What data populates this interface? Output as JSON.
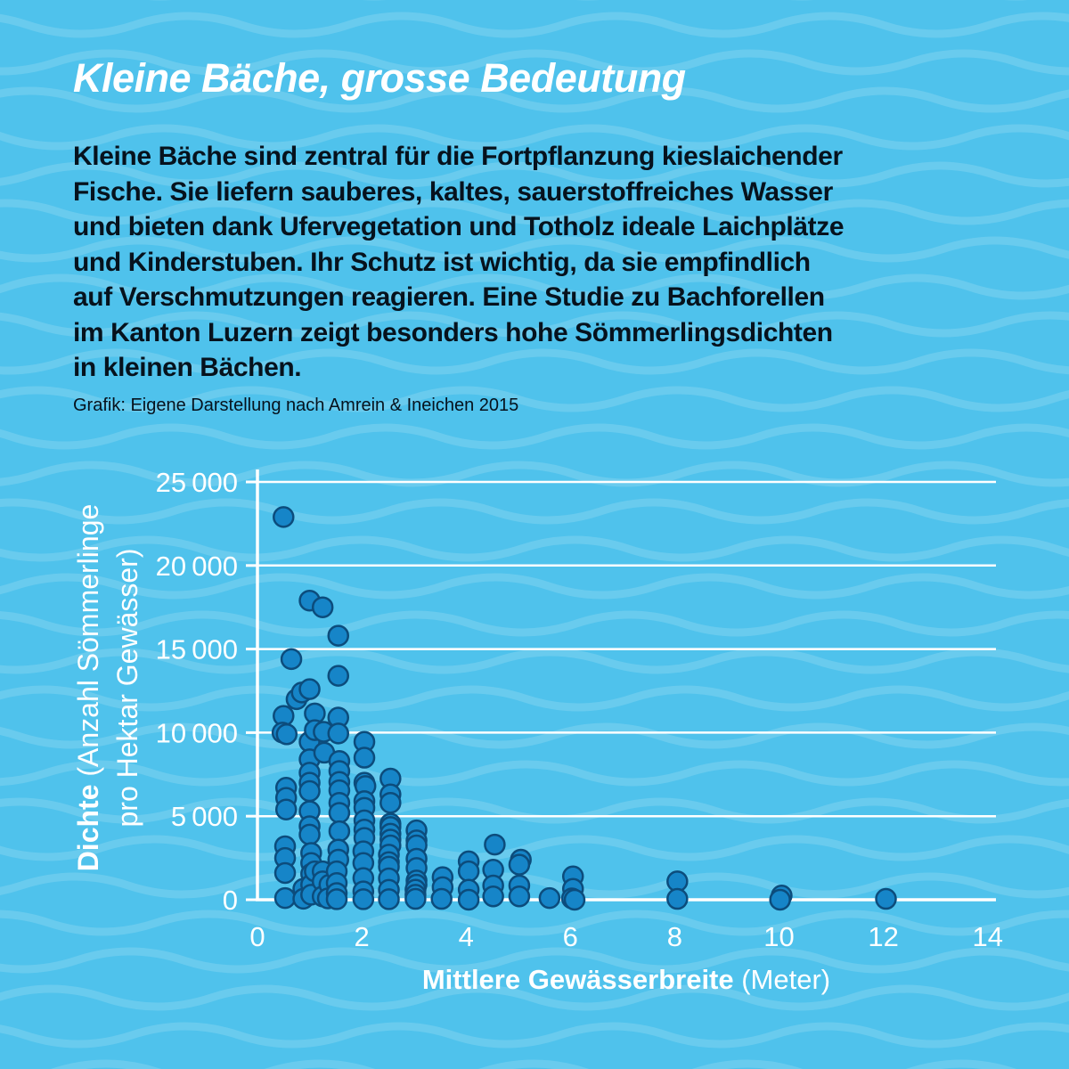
{
  "page": {
    "background_color": "#4FC2EC",
    "wave_color": "rgba(255,255,255,0.15)",
    "text_color": "#06121d",
    "accent_white": "#ffffff"
  },
  "header": {
    "title": "Kleine Bäche, grosse Bedeutung"
  },
  "intro": {
    "lines": [
      "Kleine Bäche sind zentral für die Fortpflanzung kieslaichender",
      "Fische. Sie liefern sauberes, kaltes, sauerstoffreiches Wasser",
      "und bieten dank Ufervegetation und Totholz ideale Laichplätze",
      "und Kinderstuben. Ihr Schutz ist wichtig, da sie empfindlich",
      "auf Verschmutzungen reagieren. Eine Studie zu Bachforellen",
      "im Kanton Luzern zeigt besonders hohe Sömmerlingsdichten",
      "in kleinen Bächen."
    ]
  },
  "credit": {
    "text": "Grafik: Eigene Darstellung nach Amrein & Ineichen 2015"
  },
  "chart_data": {
    "type": "scatter",
    "xlabel_bold": "Mittlere Gewässerbreite",
    "xlabel_unit": " (Meter)",
    "ylabel_bold": "Dichte",
    "ylabel_line1_rest": " (Anzahl Sömmerlinge",
    "ylabel_line2": "pro Hektar Gewässer)",
    "xlim": [
      0,
      14
    ],
    "ylim": [
      0,
      25000
    ],
    "x_ticks": [
      0,
      2,
      4,
      6,
      8,
      10,
      12,
      14
    ],
    "x_tick_labels": [
      "0",
      "2",
      "4",
      "6",
      "8",
      "10",
      "12",
      "14"
    ],
    "y_ticks": [
      0,
      5000,
      10000,
      15000,
      20000,
      25000
    ],
    "y_tick_labels": [
      "0",
      "5 000",
      "10 000",
      "15 000",
      "20 000",
      "25 000"
    ],
    "grid": "horizontal-white",
    "legend": "none",
    "marker": {
      "fill": "#1685C8",
      "stroke": "#0C4C7C",
      "radius": 11,
      "stroke_width": 2.5
    },
    "axis_color": "#ffffff",
    "points": [
      [
        0.5,
        22900
      ],
      [
        0.5,
        11000
      ],
      [
        0.48,
        10000
      ],
      [
        0.56,
        9900
      ],
      [
        0.55,
        6700
      ],
      [
        0.55,
        6100
      ],
      [
        0.55,
        5400
      ],
      [
        0.53,
        3200
      ],
      [
        0.53,
        2500
      ],
      [
        0.53,
        1600
      ],
      [
        0.53,
        100
      ],
      [
        0.65,
        14400
      ],
      [
        0.75,
        12000
      ],
      [
        0.85,
        12400
      ],
      [
        0.88,
        650
      ],
      [
        0.88,
        60
      ],
      [
        1.0,
        17900
      ],
      [
        1.0,
        12600
      ],
      [
        1.0,
        9450
      ],
      [
        1.0,
        8400
      ],
      [
        1.0,
        7600
      ],
      [
        1.0,
        7000
      ],
      [
        1.0,
        6500
      ],
      [
        1.0,
        5300
      ],
      [
        1.0,
        4400
      ],
      [
        1.0,
        3900
      ],
      [
        1.03,
        2800
      ],
      [
        1.03,
        2200
      ],
      [
        1.03,
        1550
      ],
      [
        1.03,
        900
      ],
      [
        1.03,
        300
      ],
      [
        1.1,
        11150
      ],
      [
        1.1,
        10150
      ],
      [
        1.1,
        1700
      ],
      [
        1.25,
        17500
      ],
      [
        1.27,
        10050
      ],
      [
        1.28,
        8800
      ],
      [
        1.25,
        1700
      ],
      [
        1.25,
        1100
      ],
      [
        1.25,
        200
      ],
      [
        1.38,
        900
      ],
      [
        1.35,
        80
      ],
      [
        1.55,
        15800
      ],
      [
        1.55,
        13400
      ],
      [
        1.55,
        10900
      ],
      [
        1.55,
        9950
      ],
      [
        1.57,
        8300
      ],
      [
        1.57,
        7700
      ],
      [
        1.57,
        7050
      ],
      [
        1.57,
        6550
      ],
      [
        1.57,
        5800
      ],
      [
        1.57,
        5200
      ],
      [
        1.57,
        4100
      ],
      [
        1.55,
        3000
      ],
      [
        1.55,
        2400
      ],
      [
        1.52,
        1700
      ],
      [
        1.52,
        1000
      ],
      [
        1.52,
        400
      ],
      [
        1.52,
        30
      ],
      [
        2.05,
        9450
      ],
      [
        2.05,
        8500
      ],
      [
        2.05,
        7000
      ],
      [
        2.07,
        6800
      ],
      [
        2.05,
        5900
      ],
      [
        2.05,
        5500
      ],
      [
        2.05,
        4750
      ],
      [
        2.05,
        4200
      ],
      [
        2.05,
        3700
      ],
      [
        2.03,
        2900
      ],
      [
        2.03,
        2200
      ],
      [
        2.03,
        1300
      ],
      [
        2.03,
        500
      ],
      [
        2.03,
        30
      ],
      [
        2.55,
        7250
      ],
      [
        2.55,
        6300
      ],
      [
        2.55,
        5800
      ],
      [
        2.55,
        4550
      ],
      [
        2.55,
        4350
      ],
      [
        2.55,
        3950
      ],
      [
        2.55,
        3600
      ],
      [
        2.55,
        3250
      ],
      [
        2.52,
        2700
      ],
      [
        2.52,
        2250
      ],
      [
        2.52,
        1980
      ],
      [
        2.52,
        1280
      ],
      [
        2.52,
        590
      ],
      [
        2.52,
        30
      ],
      [
        3.05,
        4150
      ],
      [
        3.05,
        3550
      ],
      [
        3.05,
        3250
      ],
      [
        3.05,
        2450
      ],
      [
        3.05,
        1900
      ],
      [
        3.05,
        1150
      ],
      [
        3.05,
        900
      ],
      [
        3.03,
        600
      ],
      [
        3.03,
        300
      ],
      [
        3.03,
        50
      ],
      [
        3.55,
        1350
      ],
      [
        3.55,
        750
      ],
      [
        3.53,
        50
      ],
      [
        4.05,
        2300
      ],
      [
        4.05,
        1700
      ],
      [
        4.05,
        600
      ],
      [
        4.05,
        0
      ],
      [
        4.55,
        3300
      ],
      [
        4.52,
        1800
      ],
      [
        4.52,
        850
      ],
      [
        4.52,
        200
      ],
      [
        5.05,
        2400
      ],
      [
        5.02,
        2100
      ],
      [
        5.02,
        850
      ],
      [
        5.02,
        200
      ],
      [
        5.6,
        100
      ],
      [
        6.05,
        1400
      ],
      [
        6.05,
        650
      ],
      [
        6.03,
        80
      ],
      [
        6.08,
        0
      ],
      [
        8.05,
        1100
      ],
      [
        8.05,
        50
      ],
      [
        10.05,
        250
      ],
      [
        10.02,
        0
      ],
      [
        12.05,
        50
      ]
    ]
  }
}
